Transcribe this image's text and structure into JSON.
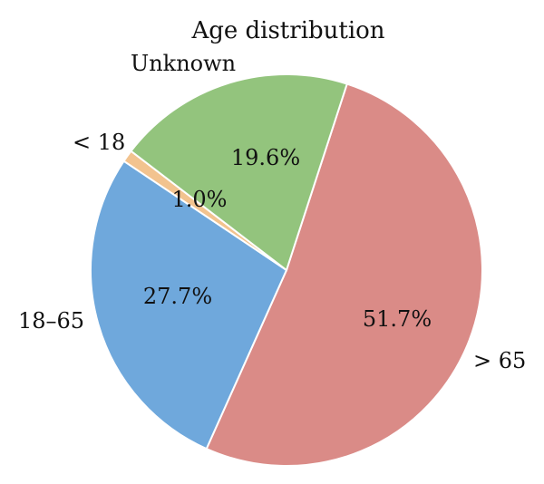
{
  "chart_data": {
    "type": "pie",
    "title": "Age distribution",
    "categories": [
      "> 65",
      "18–65",
      "< 18",
      "Unknown"
    ],
    "values": [
      51.7,
      27.7,
      1.0,
      19.6
    ],
    "value_labels": [
      "51.7%",
      "27.7%",
      "1.0%",
      "19.6%"
    ],
    "colors": [
      "#DA8B87",
      "#6FA8DC",
      "#F2C38F",
      "#93C47D"
    ],
    "start_angle_deg": 18,
    "direction": "clockwise",
    "legend": "none"
  }
}
